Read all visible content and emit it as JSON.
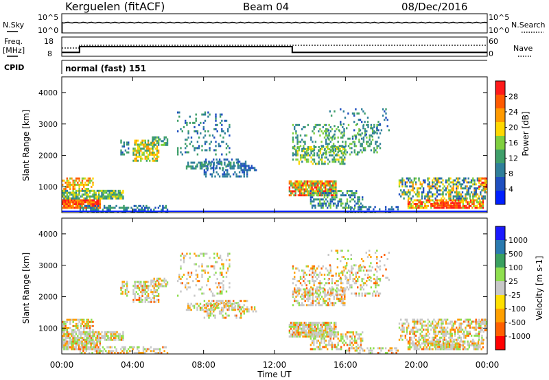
{
  "header": {
    "station": "Kerguelen (fitACF)",
    "beam": "Beam 04",
    "date": "08/Dec/2016"
  },
  "nsky_panel": {
    "left_label": "N.Sky",
    "right_label": "N.Search",
    "left_ticks": [
      "10^5",
      "10^0"
    ],
    "right_ticks": [
      "10^5",
      "10^0"
    ]
  },
  "freq_panel": {
    "left_label_top": "Freq.",
    "left_label_unit": "[MHz]",
    "right_label": "Nave",
    "left_ticks": [
      "18",
      "8"
    ],
    "right_ticks": [
      "60",
      "0"
    ],
    "freq_steps": [
      {
        "t": 0,
        "v": 10
      },
      {
        "t": 1.0,
        "v": 13
      },
      {
        "t": 13.0,
        "v": 10
      },
      {
        "t": 24,
        "v": 10
      }
    ],
    "nave_level": 13
  },
  "cpid": {
    "label": "CPID",
    "mode": "normal (fast) 151"
  },
  "chart_data": [
    {
      "type": "heatmap",
      "name": "power",
      "ylabel": "Slant Range [km]",
      "ylim": [
        180,
        4500
      ],
      "yticks": [
        "1000",
        "2000",
        "3000",
        "4000"
      ],
      "colorbar_label": "Power [dB]",
      "colorbar_ticks": [
        "28",
        "24",
        "20",
        "16",
        "12",
        "8",
        "4"
      ],
      "colors": [
        "#0020ff",
        "#1f4fc0",
        "#2f7f9a",
        "#3f9f6a",
        "#7fcf3f",
        "#ffd800",
        "#ff9a00",
        "#ff5a00",
        "#ff1a1a"
      ]
    },
    {
      "type": "heatmap",
      "name": "velocity",
      "ylabel": "Slant Range [km]",
      "ylim": [
        180,
        4500
      ],
      "yticks": [
        "1000",
        "2000",
        "3000",
        "4000"
      ],
      "xlabel": "Time UT",
      "xticks": [
        "00:00",
        "04:00",
        "08:00",
        "12:00",
        "16:00",
        "20:00",
        "00:00"
      ],
      "xlim": [
        0,
        24
      ],
      "colorbar_label": "Velocity [m s-1]",
      "colorbar_ticks": [
        "1000",
        "500",
        "100",
        "25",
        "-25",
        "-100",
        "-500",
        "-1000"
      ],
      "colors": [
        "#1a1aff",
        "#2a7ab0",
        "#3aa060",
        "#8fdf4f",
        "#c8c8c8",
        "#ffe000",
        "#ffa000",
        "#ff6000",
        "#ff0000"
      ]
    }
  ]
}
